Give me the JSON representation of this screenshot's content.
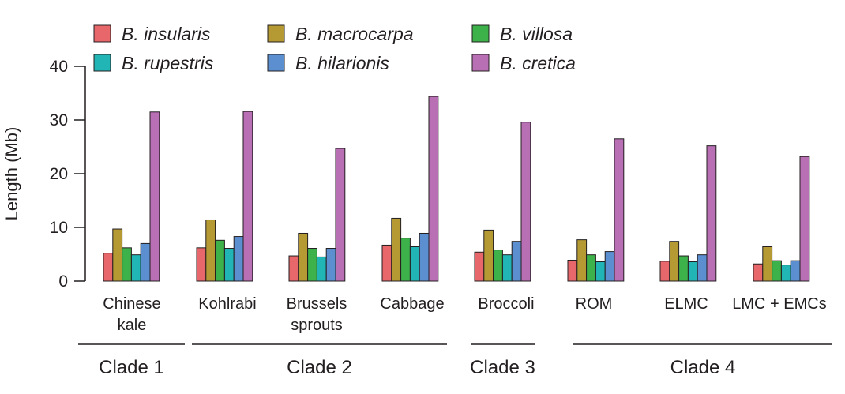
{
  "chart_data": {
    "type": "bar",
    "ylabel": "Length (Mb)",
    "xlabel": "",
    "ylim": [
      0,
      40
    ],
    "yticks": [
      0,
      10,
      20,
      30,
      40
    ],
    "grid": false,
    "legend_position": "top",
    "categories": [
      [
        "Chinese",
        "kale"
      ],
      [
        "Kohlrabi"
      ],
      [
        "Brussels",
        "sprouts"
      ],
      [
        "Cabbage"
      ],
      [
        "Broccoli"
      ],
      [
        "ROM"
      ],
      [
        "ELMC"
      ],
      [
        "LMC + EMCs"
      ]
    ],
    "series": [
      {
        "name": "B. insularis",
        "color": "#e8676b",
        "values": [
          5.2,
          6.2,
          4.7,
          6.7,
          5.4,
          3.9,
          3.7,
          3.2
        ]
      },
      {
        "name": "B. macrocarpa",
        "color": "#b59a33",
        "values": [
          9.7,
          11.4,
          8.9,
          11.7,
          9.5,
          7.7,
          7.4,
          6.4
        ]
      },
      {
        "name": "B. villosa",
        "color": "#3db24a",
        "values": [
          6.2,
          7.6,
          6.1,
          8.0,
          5.8,
          4.9,
          4.7,
          3.8
        ]
      },
      {
        "name": "B. rupestris",
        "color": "#22b5b5",
        "values": [
          4.9,
          6.1,
          4.5,
          6.4,
          4.9,
          3.6,
          3.6,
          3.0
        ]
      },
      {
        "name": "B. hilarionis",
        "color": "#5b8fd0",
        "values": [
          7.0,
          8.3,
          6.1,
          8.9,
          7.4,
          5.5,
          4.9,
          3.8
        ]
      },
      {
        "name": "B. cretica",
        "color": "#b86fb4",
        "values": [
          31.5,
          31.6,
          24.7,
          34.4,
          29.6,
          26.5,
          25.2,
          23.2
        ]
      }
    ],
    "clades": [
      {
        "label": "Clade 1",
        "from": 0,
        "to": 0
      },
      {
        "label": "Clade 2",
        "from": 1,
        "to": 3
      },
      {
        "label": "Clade 3",
        "from": 4,
        "to": 4
      },
      {
        "label": "Clade 4",
        "from": 5,
        "to": 7
      }
    ],
    "legend_order": [
      "B. insularis",
      "B. macrocarpa",
      "B. villosa",
      "B. rupestris",
      "B. hilarionis",
      "B. cretica"
    ]
  }
}
